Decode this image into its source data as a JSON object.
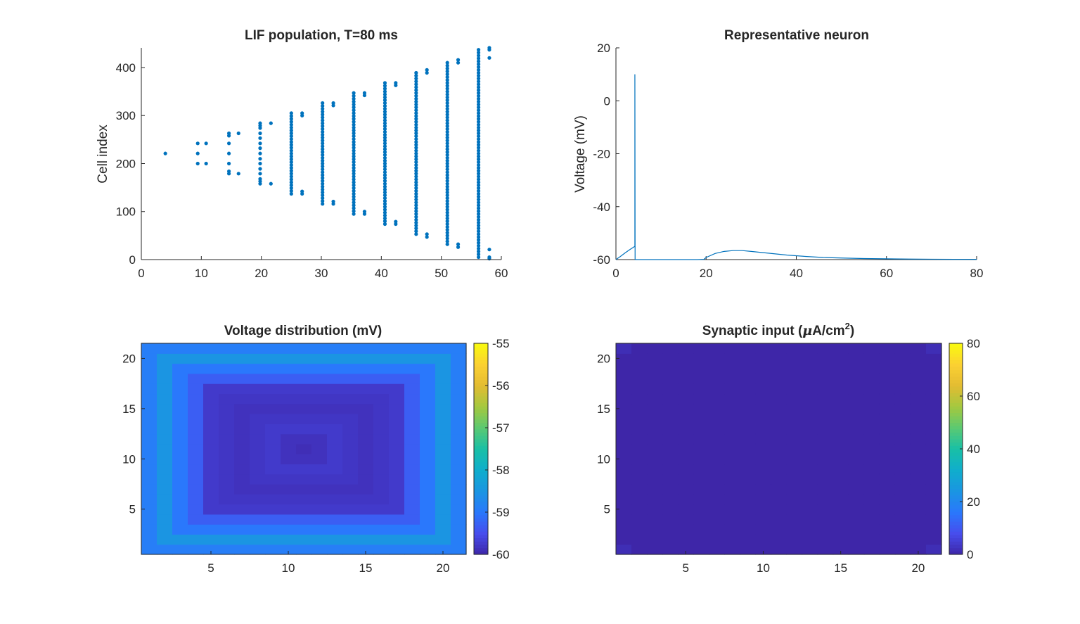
{
  "chart_data": [
    {
      "type": "scatter",
      "title": "LIF population, T=80 ms",
      "xlabel": "",
      "ylabel": "Cell index",
      "xlim": [
        0,
        60
      ],
      "ylim": [
        0,
        441
      ],
      "xticks": [
        "0",
        "10",
        "20",
        "30",
        "40",
        "50",
        "60"
      ],
      "yticks": [
        "0",
        "100",
        "200",
        "300",
        "400"
      ],
      "marker_color": "#0072BD",
      "grid": false,
      "legend": "none",
      "description_of_points": "spike raster; wave of spikes spreading outward from center cell",
      "series": [
        {
          "x": 4,
          "y": [
            221
          ]
        },
        {
          "x": 9.4,
          "y": [
            200,
            221,
            242
          ]
        },
        {
          "x": 10.8,
          "y": [
            200,
            242
          ]
        },
        {
          "x": 14.6,
          "y": [
            179,
            184,
            200,
            221,
            242,
            258,
            263
          ]
        },
        {
          "x": 16.2,
          "y": [
            179,
            263
          ]
        },
        {
          "x": 19.8,
          "y": [
            158,
            163,
            168,
            179,
            189,
            200,
            210,
            221,
            232,
            242,
            253,
            263,
            274,
            279,
            284
          ]
        },
        {
          "x": 21.6,
          "y": [
            158,
            284
          ]
        },
        {
          "x": 25.0,
          "y": "137-305 every 6"
        },
        {
          "x": 26.8,
          "y": [
            137,
            142,
            300,
            305
          ]
        },
        {
          "x": 30.2,
          "y": "116-326 every 6"
        },
        {
          "x": 32.0,
          "y": [
            116,
            121,
            321,
            326
          ]
        },
        {
          "x": 35.4,
          "y": "95-347 every 6"
        },
        {
          "x": 37.2,
          "y": [
            95,
            100,
            342,
            347
          ]
        },
        {
          "x": 40.6,
          "y": "74-368 every 6"
        },
        {
          "x": 42.4,
          "y": [
            74,
            79,
            363,
            368
          ]
        },
        {
          "x": 45.8,
          "y": "53-389 every 6"
        },
        {
          "x": 47.6,
          "y": [
            47,
            53,
            389,
            395
          ]
        },
        {
          "x": 51.0,
          "y": "32-410 every 6"
        },
        {
          "x": 52.8,
          "y": [
            26,
            32,
            410,
            416
          ]
        },
        {
          "x": 56.2,
          "y": "5-437 every 6"
        },
        {
          "x": 58.0,
          "y": [
            2,
            5,
            21,
            420,
            437,
            441
          ]
        }
      ]
    },
    {
      "type": "line",
      "title": "Representative neuron",
      "xlabel": "",
      "ylabel": "Voltage (mV)",
      "xlim": [
        0,
        80
      ],
      "ylim": [
        -60,
        20
      ],
      "xticks": [
        "0",
        "20",
        "40",
        "60",
        "80"
      ],
      "yticks": [
        "-60",
        "-40",
        "-20",
        "0",
        "20"
      ],
      "line_color": "#0072BD",
      "grid": false,
      "legend": "none",
      "series": [
        {
          "x": [
            0,
            1,
            2,
            3,
            4.2,
            4.2,
            4.25,
            4.3,
            6,
            10,
            15,
            18,
            19.5,
            20,
            22,
            24,
            26,
            28,
            30,
            34,
            38,
            42,
            46,
            50,
            55,
            60,
            65,
            70,
            75,
            80
          ],
          "y": [
            -60,
            -58.8,
            -57.5,
            -56.3,
            -55,
            10,
            -60,
            -60,
            -60,
            -60,
            -60,
            -60,
            -59.9,
            -59.2,
            -57.7,
            -56.9,
            -56.6,
            -56.6,
            -56.9,
            -57.6,
            -58.3,
            -58.8,
            -59.2,
            -59.4,
            -59.6,
            -59.7,
            -59.8,
            -59.85,
            -59.9,
            -59.9
          ]
        }
      ]
    },
    {
      "type": "heatmap",
      "title": "Voltage distribution (mV)",
      "xlabel": "",
      "ylabel": "",
      "xlim": [
        0.5,
        21.5
      ],
      "ylim": [
        0.5,
        21.5
      ],
      "xticks": [
        "5",
        "10",
        "15",
        "20"
      ],
      "yticks": [
        "5",
        "10",
        "15",
        "20"
      ],
      "grid_size": [
        21,
        21
      ],
      "colormap": "parula",
      "clim": [
        -60,
        -55
      ],
      "colorbar_ticks": [
        "-55",
        "-56",
        "-57",
        "-58",
        "-59",
        "-60"
      ],
      "ring_values_outer_to_inner": [
        -58.9,
        -58.5,
        -59.0,
        -59.3,
        -59.75,
        -59.8,
        -59.85,
        -59.8,
        -59.75,
        -59.85,
        -59.9
      ]
    },
    {
      "type": "heatmap",
      "title": "Synaptic input (μA/cm²)",
      "xlabel": "",
      "ylabel": "",
      "xlim": [
        0.5,
        21.5
      ],
      "ylim": [
        0.5,
        21.5
      ],
      "xticks": [
        "5",
        "10",
        "15",
        "20"
      ],
      "yticks": [
        "5",
        "10",
        "15",
        "20"
      ],
      "grid_size": [
        21,
        21
      ],
      "colormap": "parula",
      "clim": [
        0,
        80
      ],
      "colorbar_ticks": [
        "80",
        "60",
        "40",
        "20",
        "0"
      ],
      "background_value": 0,
      "corner_value": 1.5
    }
  ],
  "panels": {
    "raster_title": "LIF population, T=80 ms",
    "neuron_title": "Representative neuron",
    "voltage_title": "Voltage distribution (mV)",
    "synaptic_title_main": "Synaptic input (",
    "synaptic_title_mu": "μ",
    "synaptic_title_units": "A/cm",
    "synaptic_title_sup": "2",
    "synaptic_title_close": ")"
  }
}
